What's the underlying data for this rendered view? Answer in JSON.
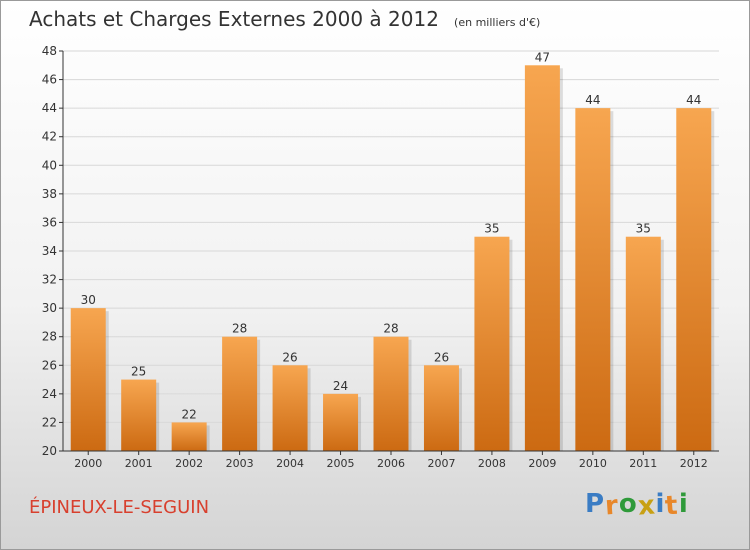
{
  "header": {
    "title": "Achats et Charges Externes 2000 à 2012",
    "subtitle": "(en milliers d'€)"
  },
  "footer": {
    "commune": "ÉPINEUX-LE-SEGUIN",
    "brand": "Proxiti"
  },
  "colors": {
    "bar_top": "#f7a650",
    "bar_bottom": "#cc6a12",
    "axis": "#333333",
    "grid": "#d8d8d8",
    "commune": "#d8402e",
    "brand_letters": [
      "#3a7cc4",
      "#e8872a",
      "#2f9a3a",
      "#c8a014",
      "#3a7cc4",
      "#e8872a",
      "#2f9a3a"
    ]
  },
  "chart_data": {
    "type": "bar",
    "title": "Achats et Charges Externes 2000 à 2012",
    "subtitle": "(en milliers d'€)",
    "xlabel": "",
    "ylabel": "",
    "categories": [
      "2000",
      "2001",
      "2002",
      "2003",
      "2004",
      "2005",
      "2006",
      "2007",
      "2008",
      "2009",
      "2010",
      "2011",
      "2012"
    ],
    "values": [
      30,
      25,
      22,
      28,
      26,
      24,
      28,
      26,
      35,
      47,
      44,
      35,
      44
    ],
    "ylim": [
      20,
      48
    ],
    "yticks": [
      20,
      22,
      24,
      26,
      28,
      30,
      32,
      34,
      36,
      38,
      40,
      42,
      44,
      46,
      48
    ],
    "grid": true,
    "legend": "none"
  }
}
